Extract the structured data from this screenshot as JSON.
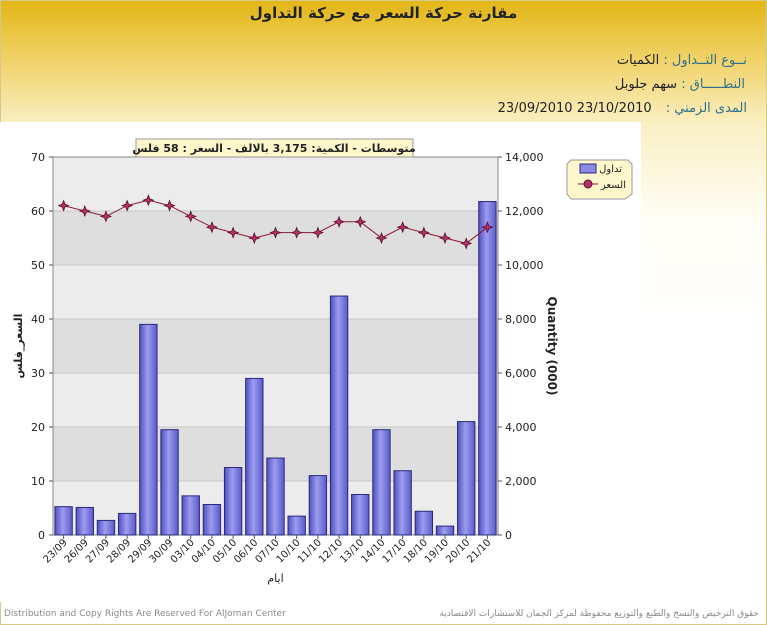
{
  "page": {
    "title": "مقارنة حركة السعر مع حركة التداول",
    "trade_type_label": "نــوع التــداول :",
    "trade_type_value": "الكميات",
    "scope_label": "النطـــــاق :",
    "scope_value": "سهم   جلوبل",
    "period_label": "المدى الزمني :",
    "period_value": "23/10/2010 23/09/2010",
    "footer_left": "Distribution and Copy Rights Are Reserved For AlJoman Center",
    "footer_right": "حقوق الترخيص والنسخ والطبع والتوزيع محفوظة لمركز الجمان للاستشارات الاقتصادية"
  },
  "chart_data": {
    "type": "bar",
    "annotation": "متوسطات - الكمية: 3,175 بالالف   - السعر : 58 فلس",
    "xlabel": "ايام",
    "ylabel_left": "السعر_فلس",
    "ylabel_right": "Quantity (000)",
    "categories": [
      "23/09",
      "26/09",
      "27/09",
      "28/09",
      "29/09",
      "30/09",
      "03/10",
      "04/10",
      "05/10",
      "06/10",
      "07/10",
      "10/10",
      "11/10",
      "12/10",
      "13/10",
      "14/10",
      "17/10",
      "18/10",
      "19/10",
      "20/10",
      "21/10"
    ],
    "ylim_left": [
      0,
      70
    ],
    "ylim_right": [
      0,
      14000
    ],
    "yticks_left": [
      "0",
      "10",
      "20",
      "30",
      "40",
      "50",
      "60",
      "70"
    ],
    "yticks_right": [
      "0",
      "2,000",
      "4,000",
      "6,000",
      "8,000",
      "10,000",
      "12,000",
      "14,000"
    ],
    "grid": true,
    "legend_position": "right",
    "series": [
      {
        "name": "تداول",
        "kind": "bar",
        "axis": "right",
        "color": "#7b7bd9",
        "values": [
          1050,
          1020,
          540,
          800,
          7800,
          3900,
          1450,
          1130,
          2500,
          5800,
          2850,
          700,
          2200,
          8850,
          1500,
          3900,
          2380,
          880,
          330,
          4200,
          12350
        ]
      },
      {
        "name": "السعر",
        "kind": "line",
        "axis": "left",
        "color": "#8c1a3c",
        "values": [
          61,
          60,
          59,
          61,
          62,
          61,
          59,
          57,
          56,
          55,
          56,
          56,
          56,
          58,
          58,
          55,
          57,
          56,
          55,
          54,
          57
        ]
      }
    ]
  }
}
